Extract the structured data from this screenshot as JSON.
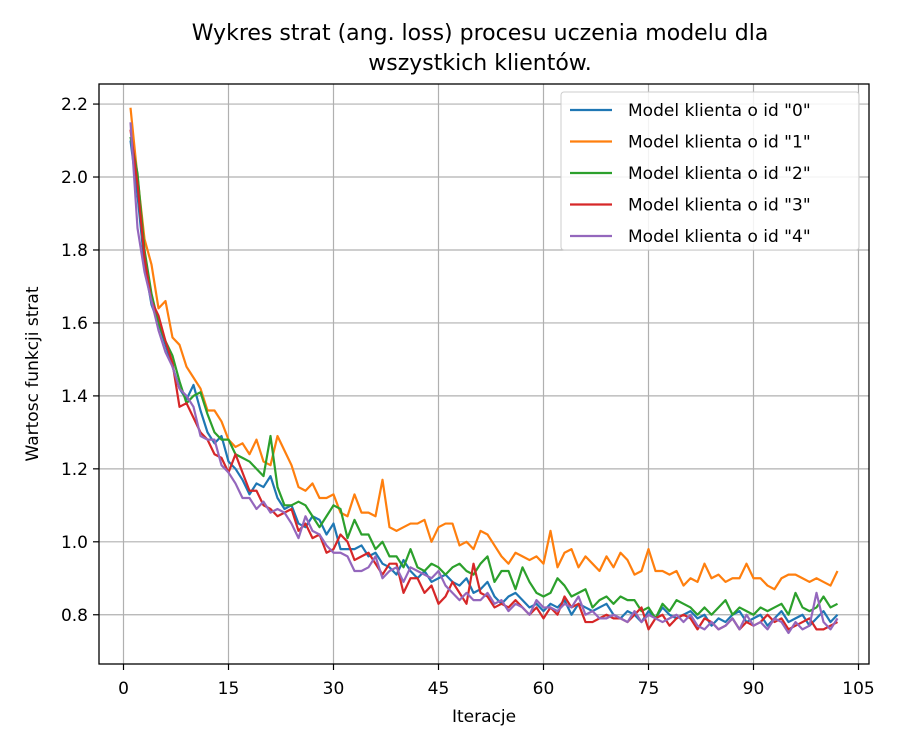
{
  "chart_data": {
    "type": "line",
    "title_lines": [
      "Wykres strat (ang. loss) procesu uczenia modelu dla",
      "wszystkich klientów."
    ],
    "xlabel": "Iteracje",
    "ylabel": "Wartosc funkcji strat",
    "xlim": [
      -3.5,
      106.5
    ],
    "ylim": [
      0.665,
      2.255
    ],
    "xticks": [
      0,
      15,
      30,
      45,
      60,
      75,
      90,
      105
    ],
    "yticks": [
      0.8,
      1.0,
      1.2,
      1.4,
      1.6,
      1.8,
      2.0,
      2.2
    ],
    "ytick_labels": [
      "0.8",
      "1.0",
      "1.2",
      "1.4",
      "1.6",
      "1.8",
      "2.0",
      "2.2"
    ],
    "grid": true,
    "legend_position": "top-right",
    "x_start": 1,
    "series": [
      {
        "name": "Model klienta o id \"0\"",
        "color": "#1f77b4",
        "values": [
          2.1,
          1.95,
          1.76,
          1.65,
          1.6,
          1.54,
          1.48,
          1.42,
          1.39,
          1.43,
          1.36,
          1.3,
          1.27,
          1.29,
          1.22,
          1.2,
          1.17,
          1.13,
          1.16,
          1.15,
          1.18,
          1.12,
          1.09,
          1.1,
          1.05,
          1.04,
          1.07,
          1.06,
          1.02,
          1.05,
          0.98,
          0.98,
          0.98,
          0.99,
          0.96,
          0.97,
          0.94,
          0.93,
          0.91,
          0.95,
          0.92,
          0.9,
          0.92,
          0.89,
          0.9,
          0.91,
          0.89,
          0.88,
          0.9,
          0.86,
          0.87,
          0.89,
          0.85,
          0.83,
          0.85,
          0.86,
          0.84,
          0.82,
          0.83,
          0.81,
          0.83,
          0.82,
          0.84,
          0.8,
          0.83,
          0.82,
          0.81,
          0.82,
          0.83,
          0.8,
          0.79,
          0.81,
          0.8,
          0.78,
          0.81,
          0.79,
          0.82,
          0.8,
          0.79,
          0.8,
          0.81,
          0.79,
          0.8,
          0.77,
          0.79,
          0.78,
          0.8,
          0.81,
          0.78,
          0.79,
          0.8,
          0.77,
          0.79,
          0.81,
          0.78,
          0.79,
          0.8,
          0.77,
          0.79,
          0.81,
          0.78,
          0.8
        ]
      },
      {
        "name": "Model klienta o id \"1\"",
        "color": "#ff7f0e",
        "values": [
          2.19,
          2.0,
          1.83,
          1.76,
          1.64,
          1.66,
          1.56,
          1.54,
          1.48,
          1.45,
          1.42,
          1.36,
          1.36,
          1.33,
          1.28,
          1.26,
          1.27,
          1.24,
          1.28,
          1.22,
          1.21,
          1.29,
          1.25,
          1.21,
          1.15,
          1.14,
          1.16,
          1.12,
          1.12,
          1.13,
          1.08,
          1.07,
          1.13,
          1.08,
          1.08,
          1.07,
          1.17,
          1.04,
          1.03,
          1.04,
          1.05,
          1.05,
          1.06,
          1.0,
          1.04,
          1.05,
          1.05,
          0.99,
          1.0,
          0.98,
          1.03,
          1.02,
          0.99,
          0.96,
          0.94,
          0.97,
          0.96,
          0.95,
          0.96,
          0.94,
          1.03,
          0.93,
          0.97,
          0.98,
          0.93,
          0.96,
          0.94,
          0.92,
          0.96,
          0.93,
          0.97,
          0.95,
          0.91,
          0.92,
          0.98,
          0.92,
          0.92,
          0.91,
          0.92,
          0.88,
          0.9,
          0.89,
          0.94,
          0.9,
          0.91,
          0.89,
          0.9,
          0.9,
          0.94,
          0.9,
          0.9,
          0.88,
          0.87,
          0.9,
          0.91,
          0.91,
          0.9,
          0.89,
          0.9,
          0.89,
          0.88,
          0.92
        ]
      },
      {
        "name": "Model klienta o id \"2\"",
        "color": "#2ca02c",
        "values": [
          2.11,
          2.01,
          1.8,
          1.68,
          1.6,
          1.55,
          1.51,
          1.44,
          1.38,
          1.4,
          1.41,
          1.35,
          1.3,
          1.28,
          1.28,
          1.24,
          1.23,
          1.22,
          1.2,
          1.18,
          1.29,
          1.15,
          1.1,
          1.1,
          1.11,
          1.1,
          1.07,
          1.04,
          1.07,
          1.1,
          1.09,
          1.01,
          1.06,
          1.02,
          1.02,
          0.98,
          1.0,
          0.96,
          0.96,
          0.93,
          0.98,
          0.93,
          0.92,
          0.94,
          0.93,
          0.91,
          0.93,
          0.94,
          0.92,
          0.91,
          0.94,
          0.96,
          0.89,
          0.92,
          0.92,
          0.87,
          0.93,
          0.89,
          0.86,
          0.85,
          0.86,
          0.9,
          0.88,
          0.85,
          0.86,
          0.87,
          0.82,
          0.84,
          0.85,
          0.83,
          0.85,
          0.84,
          0.84,
          0.81,
          0.82,
          0.79,
          0.83,
          0.81,
          0.84,
          0.83,
          0.82,
          0.8,
          0.82,
          0.8,
          0.82,
          0.84,
          0.8,
          0.82,
          0.81,
          0.8,
          0.82,
          0.81,
          0.82,
          0.83,
          0.8,
          0.86,
          0.82,
          0.81,
          0.82,
          0.85,
          0.82,
          0.83
        ]
      },
      {
        "name": "Model klienta o id \"3\"",
        "color": "#d62728",
        "values": [
          2.13,
          1.98,
          1.78,
          1.66,
          1.62,
          1.55,
          1.49,
          1.37,
          1.38,
          1.34,
          1.3,
          1.28,
          1.24,
          1.23,
          1.19,
          1.24,
          1.19,
          1.14,
          1.14,
          1.1,
          1.09,
          1.07,
          1.08,
          1.09,
          1.03,
          1.05,
          1.01,
          1.02,
          0.97,
          0.98,
          1.02,
          1.0,
          0.95,
          0.96,
          0.97,
          0.94,
          0.91,
          0.94,
          0.94,
          0.86,
          0.9,
          0.9,
          0.86,
          0.88,
          0.83,
          0.85,
          0.89,
          0.86,
          0.83,
          0.94,
          0.86,
          0.85,
          0.82,
          0.83,
          0.82,
          0.84,
          0.82,
          0.8,
          0.82,
          0.79,
          0.82,
          0.8,
          0.85,
          0.82,
          0.83,
          0.78,
          0.78,
          0.79,
          0.8,
          0.79,
          0.79,
          0.78,
          0.8,
          0.82,
          0.76,
          0.79,
          0.8,
          0.77,
          0.79,
          0.8,
          0.79,
          0.76,
          0.79,
          0.78,
          0.76,
          0.77,
          0.79,
          0.76,
          0.78,
          0.77,
          0.78,
          0.8,
          0.78,
          0.79,
          0.76,
          0.77,
          0.78,
          0.79,
          0.76,
          0.76,
          0.77,
          0.78
        ]
      },
      {
        "name": "Model klienta o id \"4\"",
        "color": "#9467bd",
        "values": [
          2.15,
          1.86,
          1.74,
          1.66,
          1.58,
          1.52,
          1.48,
          1.42,
          1.4,
          1.37,
          1.29,
          1.28,
          1.28,
          1.21,
          1.19,
          1.16,
          1.12,
          1.12,
          1.09,
          1.11,
          1.08,
          1.09,
          1.08,
          1.05,
          1.01,
          1.07,
          1.03,
          1.02,
          0.99,
          0.97,
          0.97,
          0.96,
          0.92,
          0.92,
          0.93,
          0.96,
          0.9,
          0.92,
          0.93,
          0.89,
          0.93,
          0.92,
          0.91,
          0.9,
          0.92,
          0.88,
          0.86,
          0.84,
          0.86,
          0.84,
          0.84,
          0.86,
          0.83,
          0.84,
          0.81,
          0.83,
          0.82,
          0.8,
          0.84,
          0.82,
          0.82,
          0.81,
          0.83,
          0.82,
          0.85,
          0.8,
          0.81,
          0.79,
          0.79,
          0.8,
          0.79,
          0.78,
          0.81,
          0.78,
          0.8,
          0.79,
          0.78,
          0.79,
          0.8,
          0.78,
          0.8,
          0.77,
          0.76,
          0.78,
          0.76,
          0.77,
          0.79,
          0.76,
          0.8,
          0.77,
          0.78,
          0.76,
          0.79,
          0.78,
          0.75,
          0.78,
          0.76,
          0.77,
          0.86,
          0.78,
          0.76,
          0.79
        ]
      }
    ]
  }
}
